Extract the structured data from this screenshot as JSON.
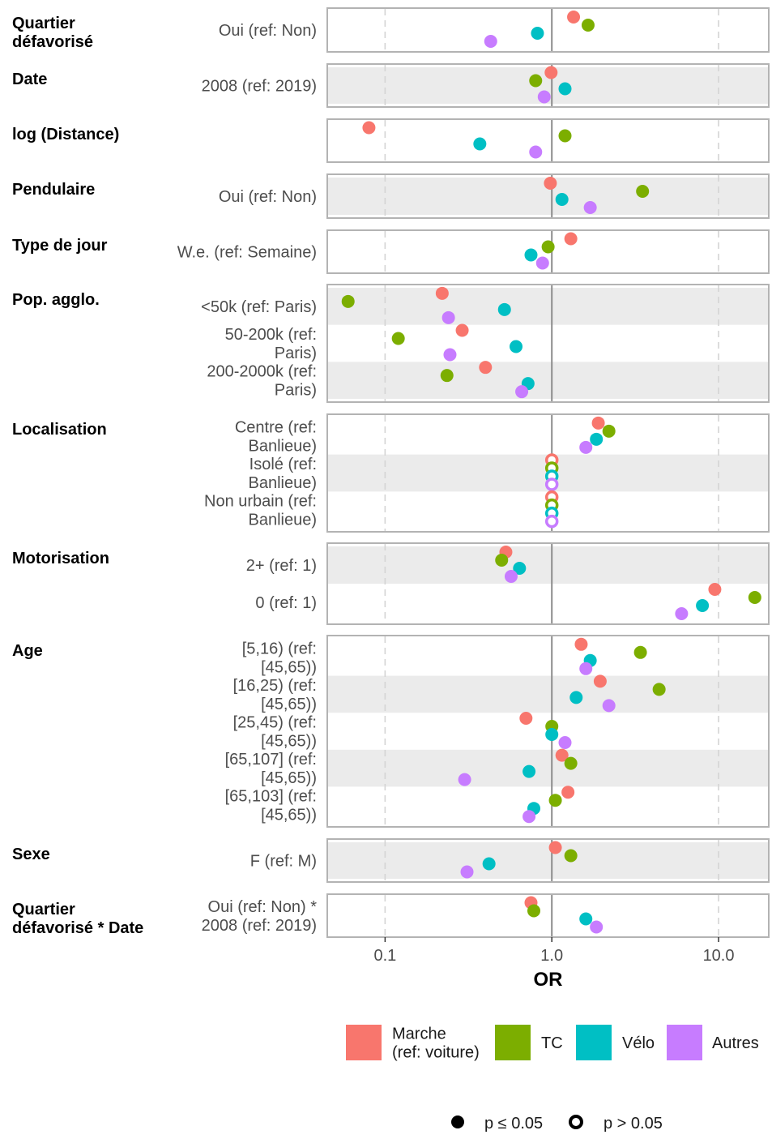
{
  "chart_data": {
    "type": "scatter",
    "xlabel": "OR",
    "xscale": "log10",
    "xlim": [
      0.045,
      20
    ],
    "xticks": [
      0.1,
      1.0,
      10.0
    ],
    "xtick_labels": [
      "0.1",
      "1.0",
      "10.0"
    ],
    "reference_line": 1.0,
    "grid": "dashed vertical at 0.1 and 10",
    "legend_position": "bottom",
    "series": [
      {
        "name": "Marche\n(ref: voiture)",
        "color": "#F8766D"
      },
      {
        "name": "TC",
        "color": "#7CAE00"
      },
      {
        "name": "Vélo",
        "color": "#00BFC4"
      },
      {
        "name": "Autres",
        "color": "#C77CFF"
      }
    ],
    "significance_legend": {
      "filled": "p ≤ 0.05",
      "open": "p > 0.05"
    },
    "groups": [
      {
        "name": "Quartier\ndéfavorisé",
        "terms": [
          {
            "label": "Oui (ref: Non)",
            "values": [
              1.35,
              1.65,
              0.82,
              0.43
            ],
            "sig": [
              true,
              true,
              true,
              true
            ]
          }
        ]
      },
      {
        "name": "Date",
        "terms": [
          {
            "label": "2008 (ref: 2019)",
            "values": [
              0.99,
              0.8,
              1.2,
              0.9
            ],
            "sig": [
              true,
              true,
              true,
              true
            ]
          }
        ]
      },
      {
        "name": "log (Distance)",
        "terms": [
          {
            "label": "",
            "values": [
              0.08,
              1.2,
              0.37,
              0.8
            ],
            "sig": [
              true,
              true,
              true,
              true
            ]
          }
        ]
      },
      {
        "name": "Pendulaire",
        "terms": [
          {
            "label": "Oui (ref: Non)",
            "values": [
              0.98,
              3.5,
              1.15,
              1.7
            ],
            "sig": [
              true,
              true,
              true,
              true
            ]
          }
        ]
      },
      {
        "name": "Type de jour",
        "terms": [
          {
            "label": "W.e. (ref: Semaine)",
            "values": [
              1.3,
              0.95,
              0.75,
              0.88
            ],
            "sig": [
              true,
              true,
              true,
              true
            ]
          }
        ]
      },
      {
        "name": "Pop. agglo.",
        "terms": [
          {
            "label": "<50k (ref: Paris)",
            "values": [
              0.22,
              0.06,
              0.52,
              0.24
            ],
            "sig": [
              true,
              true,
              true,
              true
            ]
          },
          {
            "label": "50-200k (ref:\nParis)",
            "values": [
              0.29,
              0.12,
              0.61,
              0.245
            ],
            "sig": [
              true,
              true,
              true,
              true
            ]
          },
          {
            "label": "200-2000k (ref:\nParis)",
            "values": [
              0.4,
              0.235,
              0.72,
              0.66
            ],
            "sig": [
              true,
              true,
              true,
              true
            ]
          }
        ]
      },
      {
        "name": "Localisation",
        "terms": [
          {
            "label": "Centre (ref:\nBanlieue)",
            "values": [
              1.9,
              2.2,
              1.85,
              1.6
            ],
            "sig": [
              true,
              true,
              true,
              true
            ]
          },
          {
            "label": "Isolé (ref:\nBanlieue)",
            "values": [
              1.0,
              1.0,
              1.0,
              1.0
            ],
            "sig": [
              false,
              false,
              false,
              false
            ]
          },
          {
            "label": "Non urbain (ref:\nBanlieue)",
            "values": [
              1.0,
              1.0,
              1.0,
              1.0
            ],
            "sig": [
              false,
              false,
              false,
              false
            ]
          }
        ]
      },
      {
        "name": "Motorisation",
        "terms": [
          {
            "label": "2+ (ref: 1)",
            "values": [
              0.53,
              0.5,
              0.64,
              0.57
            ],
            "sig": [
              true,
              true,
              true,
              true
            ]
          },
          {
            "label": "0 (ref: 1)",
            "values": [
              9.5,
              16.5,
              8.0,
              6.0
            ],
            "sig": [
              true,
              true,
              true,
              true
            ]
          }
        ]
      },
      {
        "name": "Age",
        "terms": [
          {
            "label": "[5,16) (ref:\n[45,65))",
            "values": [
              1.5,
              3.4,
              1.7,
              1.6
            ],
            "sig": [
              true,
              true,
              true,
              true
            ]
          },
          {
            "label": "[16,25) (ref:\n[45,65))",
            "values": [
              1.95,
              4.4,
              1.4,
              2.2
            ],
            "sig": [
              true,
              true,
              true,
              true
            ]
          },
          {
            "label": "[25,45) (ref:\n[45,65))",
            "values": [
              0.7,
              1.0,
              1.0,
              1.2
            ],
            "sig": [
              true,
              true,
              true,
              true
            ]
          },
          {
            "label": "[65,107] (ref:\n[45,65))",
            "values": [
              1.15,
              1.3,
              0.73,
              0.3
            ],
            "sig": [
              true,
              true,
              true,
              true
            ]
          },
          {
            "label": "[65,103] (ref:\n[45,65))",
            "values": [
              1.25,
              1.05,
              0.78,
              0.73
            ],
            "sig": [
              true,
              true,
              true,
              true
            ]
          }
        ]
      },
      {
        "name": "Sexe",
        "terms": [
          {
            "label": "F (ref: M)",
            "values": [
              1.05,
              1.3,
              0.42,
              0.31
            ],
            "sig": [
              true,
              true,
              true,
              true
            ]
          }
        ]
      },
      {
        "name": "Quartier\ndéfavorisé * Date",
        "terms": [
          {
            "label": "Oui (ref: Non) *\n2008 (ref: 2019)",
            "values": [
              0.75,
              0.78,
              1.6,
              1.85
            ],
            "sig": [
              true,
              true,
              true,
              true
            ]
          }
        ]
      }
    ]
  }
}
